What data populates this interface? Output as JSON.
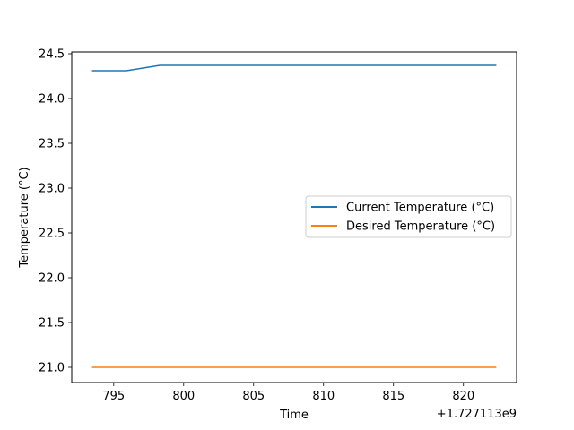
{
  "chart_data": {
    "type": "line",
    "xlabel": "Time",
    "ylabel": "Temperature (°C)",
    "x_offset_label": "+1.727113e9",
    "xlim": [
      792.0,
      823.8
    ],
    "ylim": [
      20.83,
      24.52
    ],
    "x_ticks": [
      795,
      800,
      805,
      810,
      815,
      820
    ],
    "y_ticks": [
      21.0,
      21.5,
      22.0,
      22.5,
      23.0,
      23.5,
      24.0,
      24.5
    ],
    "grid": false,
    "legend_position": "center-right",
    "series": [
      {
        "name": "Current Temperature (°C)",
        "color": "#1f77b4",
        "x": [
          793.5,
          795.9,
          798.3,
          822.3
        ],
        "y": [
          24.31,
          24.31,
          24.37,
          24.37
        ]
      },
      {
        "name": "Desired Temperature (°C)",
        "color": "#ff7f0e",
        "x": [
          793.5,
          822.3
        ],
        "y": [
          21.0,
          21.0
        ]
      }
    ]
  }
}
